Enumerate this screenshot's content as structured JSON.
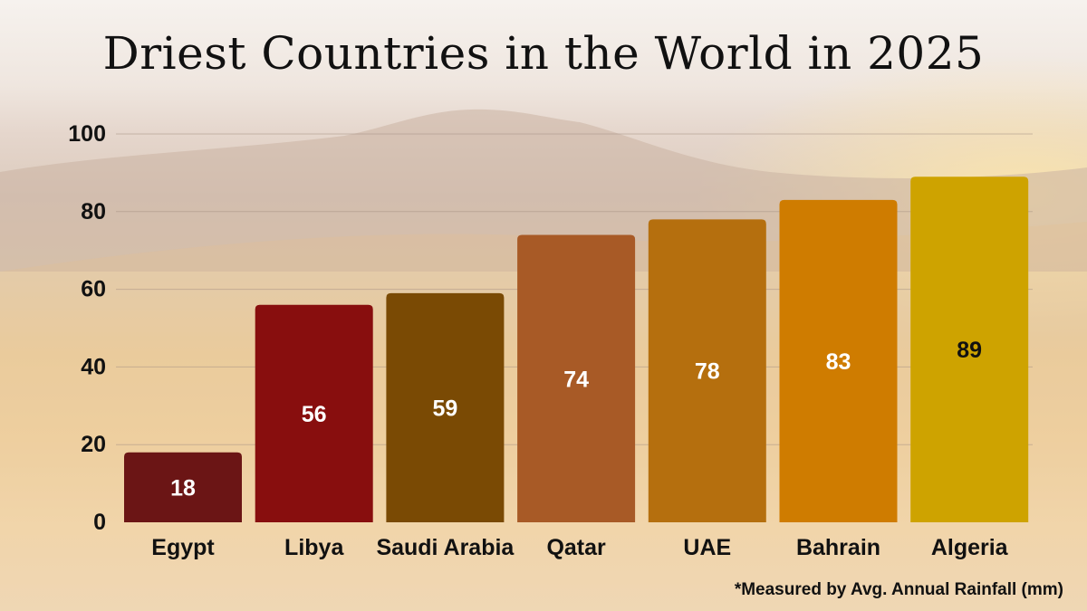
{
  "chart_data": {
    "type": "bar",
    "title": "Driest Countries in the World in 2025",
    "categories": [
      "Egypt",
      "Libya",
      "Saudi Arabia",
      "Qatar",
      "UAE",
      "Bahrain",
      "Algeria"
    ],
    "values": [
      18,
      56,
      59,
      74,
      78,
      83,
      89
    ],
    "value_labels": [
      "18",
      "56",
      "59",
      "74",
      "78",
      "83",
      "89"
    ],
    "yticks": [
      "0",
      "20",
      "40",
      "60",
      "80",
      "100"
    ],
    "ytick_values": [
      0,
      20,
      40,
      60,
      80,
      100
    ],
    "ylim": [
      0,
      100
    ],
    "xlabel": "",
    "ylabel": "",
    "grid": true,
    "bar_colors": [
      "#6b1515",
      "#880e0e",
      "#7a4a04",
      "#a85a26",
      "#b56f0e",
      "#cf7c00",
      "#cea300"
    ],
    "label_colors": [
      "#ffffff",
      "#ffffff",
      "#ffffff",
      "#ffffff",
      "#ffffff",
      "#ffffff",
      "#111111"
    ],
    "note": "*Measured by Avg. Annual Rainfall (mm)"
  }
}
